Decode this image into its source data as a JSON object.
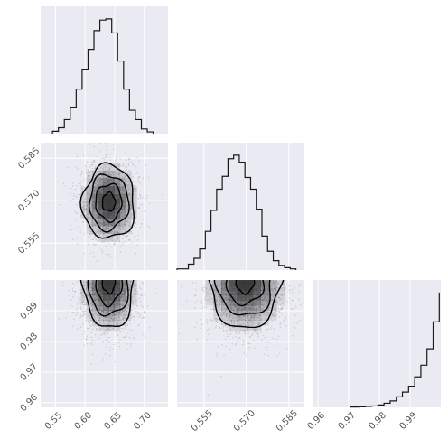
{
  "chart_data": {
    "type": "corner",
    "parameters": [
      "",
      "",
      ""
    ],
    "colors": {
      "panel_background": "#eaeaf2",
      "grid": "#ffffff",
      "lines": "#1a1a1a",
      "density": "#2b2b2b"
    },
    "ranges": [
      [
        0.525,
        0.74
      ],
      [
        0.5455,
        0.5905
      ],
      [
        0.9585,
        1.0
      ]
    ],
    "ticks": [
      {
        "values": [
          0.55,
          0.6,
          0.65,
          0.7
        ],
        "labels": [
          "0.55",
          "0.60",
          "0.65",
          "0.70"
        ]
      },
      {
        "values": [
          0.555,
          0.57,
          0.585
        ],
        "labels": [
          "0.555",
          "0.570",
          "0.585"
        ]
      },
      {
        "values": [
          0.96,
          0.97,
          0.98,
          0.99
        ],
        "labels": [
          "0.96",
          "0.97",
          "0.98",
          "0.99"
        ]
      }
    ],
    "histograms": [
      {
        "parameter": 0,
        "bin_edges": [
          0.545,
          0.555,
          0.565,
          0.575,
          0.585,
          0.595,
          0.605,
          0.615,
          0.625,
          0.635,
          0.645,
          0.655,
          0.665,
          0.675,
          0.685,
          0.695,
          0.705,
          0.715
        ],
        "counts": [
          0.02,
          0.05,
          0.12,
          0.22,
          0.38,
          0.55,
          0.72,
          0.88,
          0.97,
          0.98,
          0.86,
          0.62,
          0.38,
          0.2,
          0.12,
          0.04,
          0.015
        ]
      },
      {
        "parameter": 1,
        "bin_edges": [
          0.5455,
          0.5475,
          0.5495,
          0.5515,
          0.5535,
          0.5555,
          0.5575,
          0.5595,
          0.5615,
          0.5635,
          0.5655,
          0.5675,
          0.5695,
          0.5715,
          0.5735,
          0.5755,
          0.5775,
          0.5795,
          0.5815,
          0.5835,
          0.5855,
          0.5875
        ],
        "counts": [
          0.01,
          0.01,
          0.05,
          0.1,
          0.18,
          0.33,
          0.51,
          0.69,
          0.8,
          0.95,
          0.98,
          0.92,
          0.79,
          0.69,
          0.52,
          0.29,
          0.16,
          0.08,
          0.04,
          0.02,
          0.01
        ]
      },
      {
        "parameter": 2,
        "bin_edges": [
          0.9705,
          0.9735,
          0.9755,
          0.9775,
          0.9795,
          0.9815,
          0.9835,
          0.9855,
          0.9875,
          0.9895,
          0.9915,
          0.9935,
          0.9955,
          0.9975,
          0.9995
        ],
        "counts": [
          0.003,
          0.005,
          0.008,
          0.012,
          0.02,
          0.035,
          0.055,
          0.09,
          0.13,
          0.18,
          0.26,
          0.36,
          0.5,
          0.73,
          0.98
        ]
      }
    ],
    "pairs": [
      {
        "x": 0,
        "y": 1,
        "center": [
          0.64,
          0.5695
        ],
        "spread": [
          0.022,
          0.0065
        ],
        "contour_levels": [
          0.5,
          1.0,
          1.5,
          2.0
        ]
      },
      {
        "x": 0,
        "y": 2,
        "center": [
          0.64,
          0.9995
        ],
        "spread": [
          0.022,
          0.0075
        ],
        "contour_levels": [
          0.5,
          1.0,
          1.5,
          2.0
        ]
      },
      {
        "x": 1,
        "y": 2,
        "center": [
          0.5695,
          0.9995
        ],
        "spread": [
          0.0065,
          0.0075
        ],
        "contour_levels": [
          0.5,
          1.0,
          1.5,
          2.0
        ]
      }
    ]
  }
}
